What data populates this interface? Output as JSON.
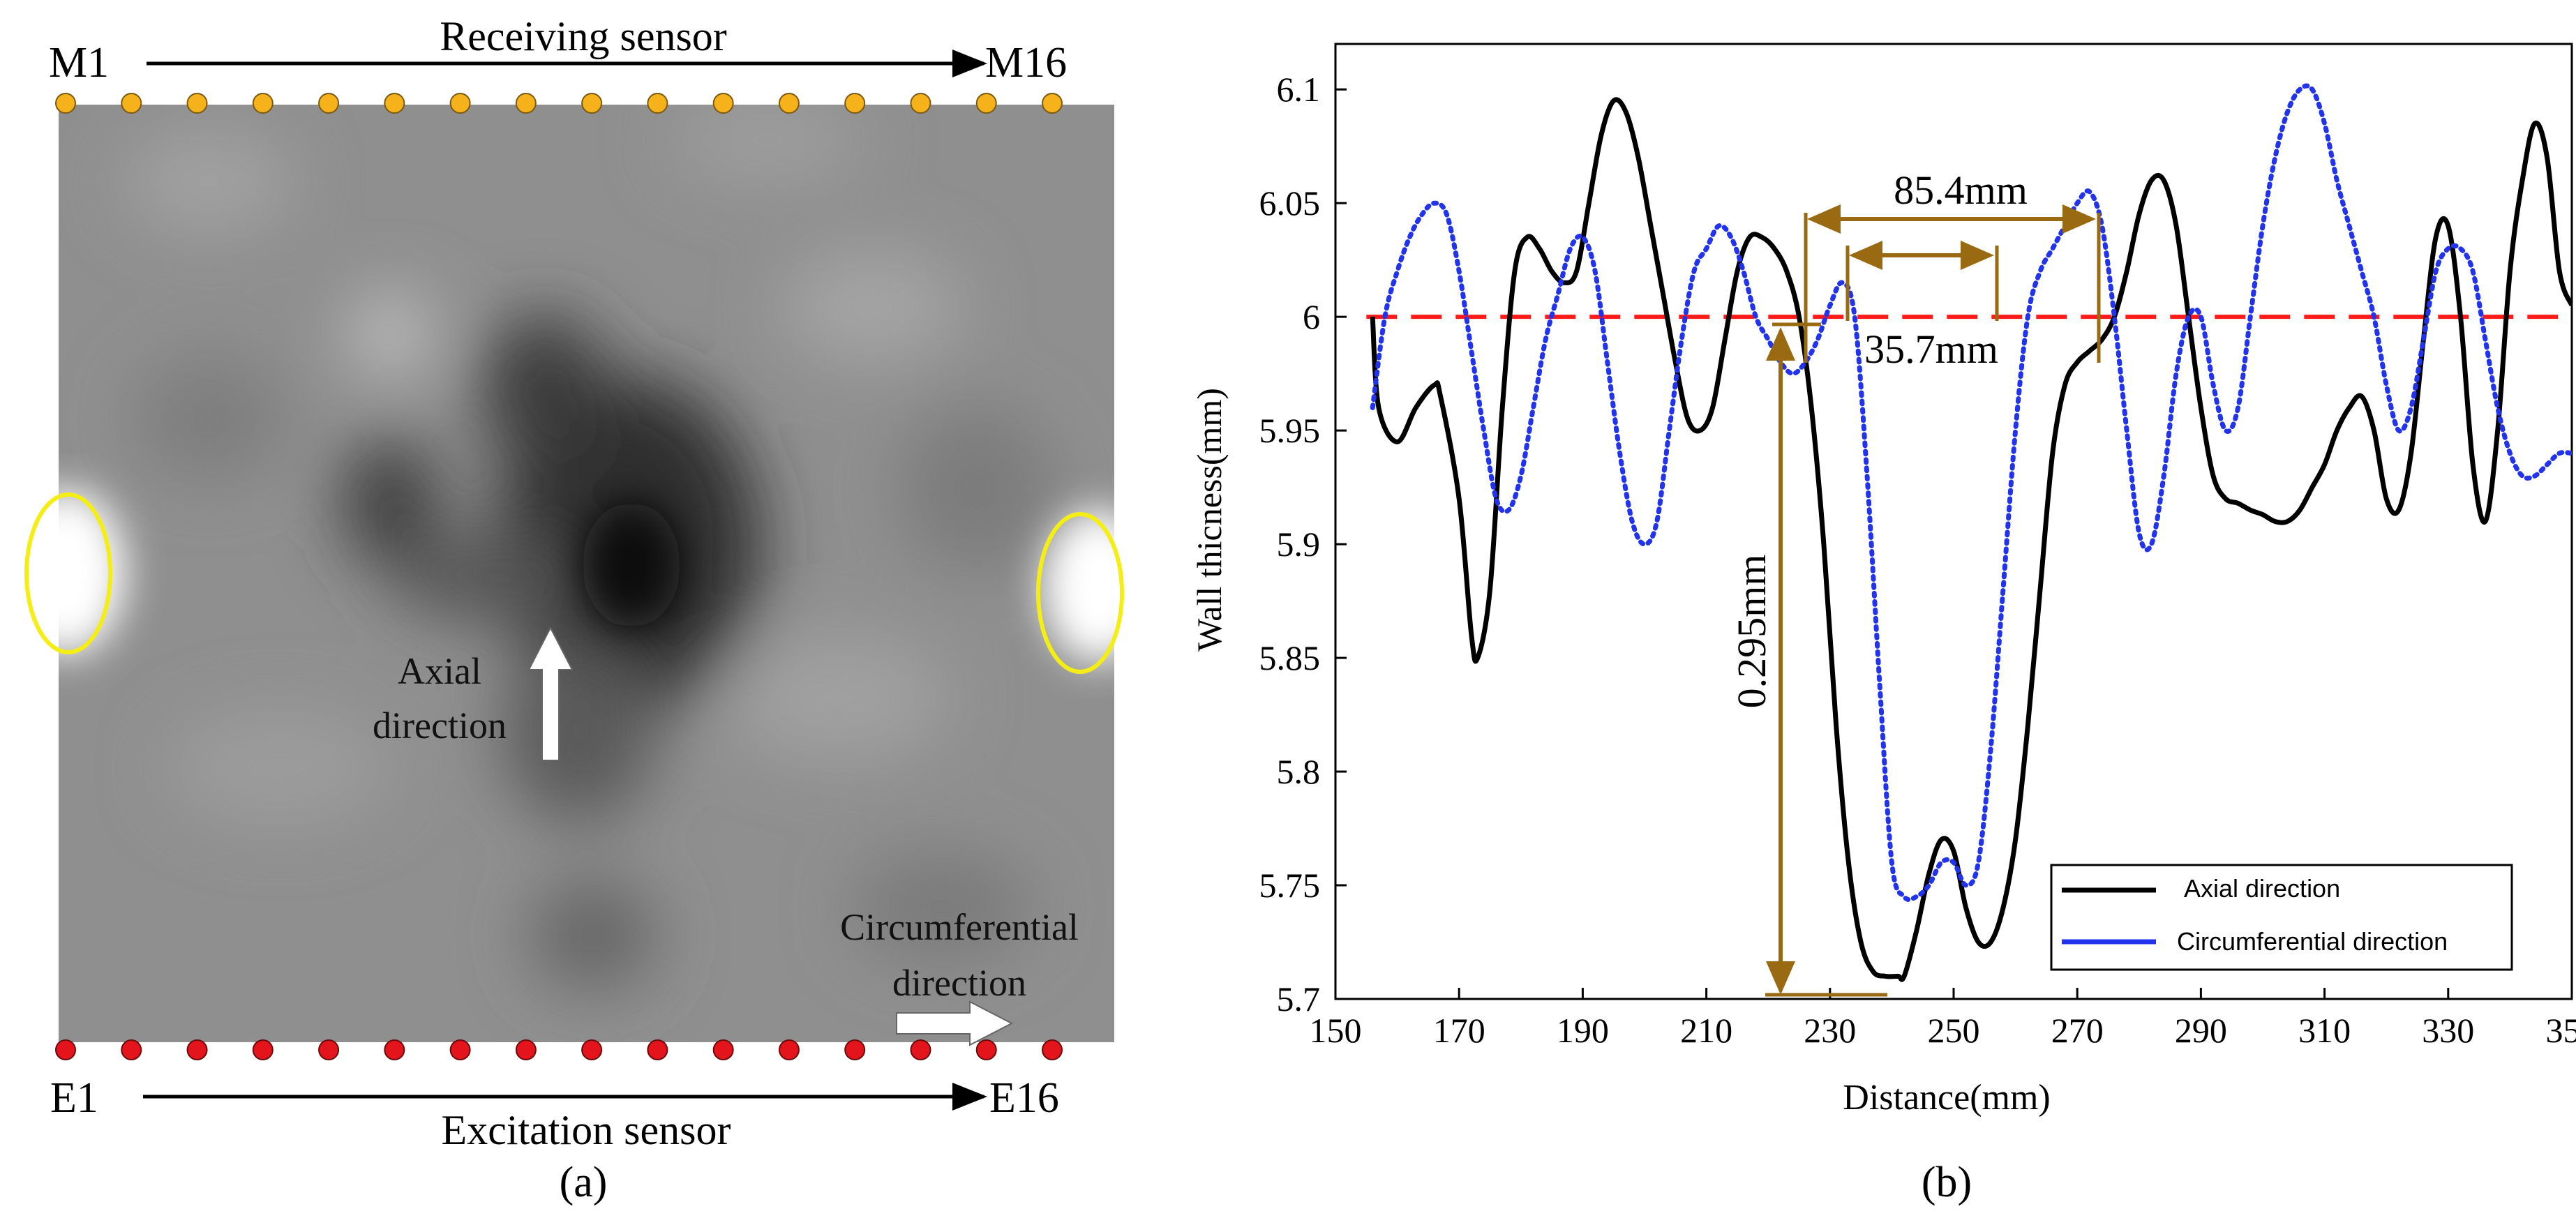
{
  "panel_a": {
    "caption": "(a)",
    "top_sensor": {
      "label": "Receiving sensor",
      "start": "M1",
      "end": "M16",
      "count": 16,
      "color": "#f5b21a"
    },
    "bottom_sensor": {
      "label": "Excitation sensor",
      "start": "E1",
      "end": "E16",
      "count": 16,
      "color": "#e3141b"
    },
    "axial_label_line1": "Axial",
    "axial_label_line2": "direction",
    "circ_label_line1": "Circumferential",
    "circ_label_line2": "direction",
    "highlight_color": "#f4ee14"
  },
  "panel_b": {
    "caption": "(b)",
    "annotations": {
      "width_outer": "85.4mm",
      "width_inner": "35.7mm",
      "depth": "0.295mm",
      "color": "#9a6a12"
    }
  },
  "chart_data": {
    "type": "line",
    "xlabel": "Distance(mm)",
    "ylabel": "Wall thicness(mm)",
    "xlim": [
      150,
      350
    ],
    "ylim": [
      5.7,
      6.12
    ],
    "xticks": [
      "150",
      "170",
      "190",
      "210",
      "230",
      "250",
      "270",
      "290",
      "310",
      "330",
      "350"
    ],
    "yticks": [
      "5.7",
      "5.75",
      "5.8",
      "5.85",
      "5.9",
      "5.95",
      "6",
      "6.05",
      "6.1"
    ],
    "reference_line": {
      "y": 6.0,
      "color": "#ff1a1a"
    },
    "legend_position": "bottom-right",
    "series": [
      {
        "name": "Axial direction",
        "color": "#000000",
        "x": [
          156,
          157,
          160,
          163,
          166,
          167,
          170,
          172,
          173,
          175,
          177,
          179,
          181,
          183,
          185,
          187,
          189,
          191,
          193,
          195,
          197,
          199,
          201,
          203,
          205,
          207,
          209,
          211,
          213,
          215,
          217,
          219,
          221,
          223,
          225,
          227,
          229,
          231,
          233,
          235,
          237,
          239,
          241,
          242,
          244,
          246,
          248,
          250,
          252,
          254,
          256,
          258,
          260,
          262,
          264,
          266,
          268,
          270,
          272,
          274,
          276,
          278,
          280,
          282,
          284,
          286,
          288,
          290,
          292,
          294,
          296,
          298,
          300,
          302,
          304,
          306,
          308,
          310,
          312,
          314,
          316,
          318,
          320,
          322,
          324,
          326,
          328,
          330,
          332,
          334,
          336,
          338,
          340,
          342,
          344,
          346,
          348,
          350
        ],
        "y": [
          6.0,
          5.96,
          5.945,
          5.96,
          5.97,
          5.965,
          5.92,
          5.86,
          5.85,
          5.88,
          5.96,
          6.02,
          6.035,
          6.03,
          6.02,
          6.015,
          6.02,
          6.05,
          6.08,
          6.095,
          6.09,
          6.07,
          6.04,
          6.01,
          5.98,
          5.955,
          5.95,
          5.96,
          5.99,
          6.02,
          6.035,
          6.035,
          6.03,
          6.02,
          6.0,
          5.96,
          5.9,
          5.82,
          5.76,
          5.725,
          5.712,
          5.71,
          5.71,
          5.71,
          5.73,
          5.755,
          5.77,
          5.765,
          5.74,
          5.725,
          5.725,
          5.74,
          5.77,
          5.82,
          5.88,
          5.94,
          5.97,
          5.98,
          5.985,
          5.99,
          6.0,
          6.02,
          6.045,
          6.06,
          6.06,
          6.04,
          6.0,
          5.96,
          5.93,
          5.92,
          5.918,
          5.915,
          5.913,
          5.91,
          5.91,
          5.915,
          5.925,
          5.935,
          5.95,
          5.96,
          5.965,
          5.95,
          5.92,
          5.915,
          5.94,
          5.99,
          6.035,
          6.04,
          6.0,
          5.935,
          5.91,
          5.95,
          6.02,
          6.06,
          6.085,
          6.07,
          6.02,
          6.005
        ]
      },
      {
        "name": "Circumferential direction",
        "color": "#2233ee",
        "x": [
          156,
          158,
          160,
          162,
          164,
          166,
          168,
          170,
          172,
          174,
          176,
          178,
          180,
          182,
          184,
          186,
          188,
          190,
          192,
          194,
          196,
          198,
          200,
          202,
          204,
          206,
          208,
          210,
          212,
          214,
          216,
          218,
          220,
          222,
          224,
          226,
          228,
          230,
          232,
          234,
          236,
          238,
          240,
          242,
          244,
          246,
          248,
          250,
          252,
          254,
          256,
          258,
          260,
          262,
          264,
          266,
          268,
          270,
          272,
          274,
          276,
          278,
          280,
          282,
          284,
          286,
          288,
          290,
          292,
          294,
          296,
          298,
          300,
          302,
          304,
          306,
          308,
          310,
          312,
          314,
          316,
          318,
          320,
          322,
          324,
          326,
          328,
          330,
          332,
          334,
          336,
          338,
          340,
          342,
          344,
          346,
          348,
          350
        ],
        "y": [
          5.96,
          6.0,
          6.02,
          6.035,
          6.045,
          6.05,
          6.045,
          6.02,
          5.985,
          5.95,
          5.92,
          5.915,
          5.93,
          5.96,
          5.99,
          6.01,
          6.03,
          6.035,
          6.02,
          5.98,
          5.94,
          5.91,
          5.9,
          5.91,
          5.95,
          5.99,
          6.02,
          6.03,
          6.04,
          6.035,
          6.02,
          6.0,
          5.99,
          5.98,
          5.975,
          5.98,
          5.99,
          6.005,
          6.015,
          6.0,
          5.93,
          5.84,
          5.76,
          5.745,
          5.745,
          5.75,
          5.76,
          5.76,
          5.75,
          5.76,
          5.81,
          5.88,
          5.95,
          6.0,
          6.02,
          6.03,
          6.04,
          6.05,
          6.055,
          6.04,
          6.0,
          5.95,
          5.905,
          5.9,
          5.93,
          5.975,
          6.0,
          6.0,
          5.97,
          5.95,
          5.96,
          6.0,
          6.04,
          6.07,
          6.09,
          6.1,
          6.1,
          6.085,
          6.06,
          6.04,
          6.02,
          6.0,
          5.97,
          5.95,
          5.96,
          5.99,
          6.02,
          6.03,
          6.03,
          6.02,
          5.99,
          5.96,
          5.94,
          5.93,
          5.93,
          5.935,
          5.94,
          5.94
        ]
      }
    ]
  }
}
